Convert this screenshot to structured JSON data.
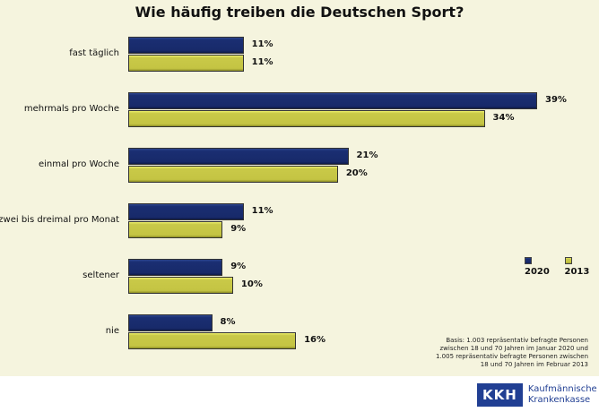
{
  "chart_data": {
    "type": "bar",
    "orientation": "horizontal",
    "title": "Wie häufig treiben die Deutschen Sport?",
    "categories": [
      "fast täglich",
      "mehrmals pro Woche",
      "einmal pro Woche",
      "zwei bis dreimal pro Monat",
      "seltener",
      "nie"
    ],
    "series": [
      {
        "name": "2020",
        "color": "#1a2e72",
        "values": [
          11,
          39,
          21,
          11,
          9,
          8
        ]
      },
      {
        "name": "2013",
        "color": "#c9c948",
        "values": [
          11,
          34,
          20,
          9,
          10,
          16
        ]
      }
    ],
    "value_suffix": "%",
    "xlim": [
      0,
      40
    ],
    "grid": false,
    "legend": "right"
  },
  "note": [
    "Basis: 1.003 repräsentativ befragte Personen",
    "zwischen 18 und 70 Jahren im Januar 2020 und",
    "1.005 repräsentativ befragte Personen zwischen",
    "18 und 70 Jahren im Februar 2013"
  ],
  "logo": {
    "mark": "KKH",
    "line1": "Kaufmännische",
    "line2": "Krankenkasse"
  }
}
